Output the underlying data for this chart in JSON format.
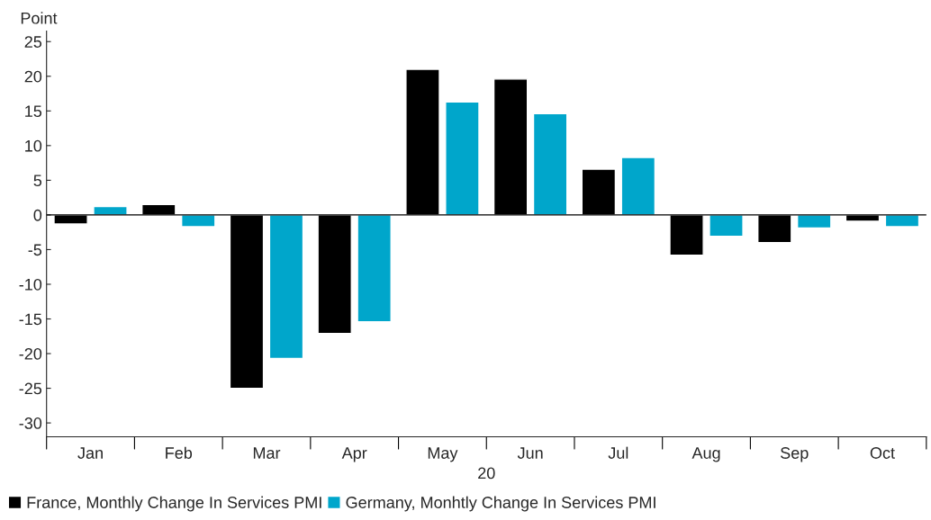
{
  "chart_data": {
    "type": "bar",
    "ylabel": "Point",
    "xlabel": "20",
    "categories": [
      "Jan",
      "Feb",
      "Mar",
      "Apr",
      "May",
      "Jun",
      "Jul",
      "Aug",
      "Sep",
      "Oct"
    ],
    "series": [
      {
        "name": "France, Monthly Change In Services PMI",
        "color": "#000000",
        "values": [
          -1.3,
          1.5,
          -25,
          -17.1,
          21,
          19.6,
          6.6,
          -5.8,
          -4.0,
          -0.9
        ]
      },
      {
        "name": "Germany, Monhtly Change In Services PMI",
        "color": "#00a6cb",
        "values": [
          1.2,
          -1.7,
          -20.7,
          -15.4,
          16.3,
          14.6,
          8.3,
          -3.1,
          -1.9,
          -1.7
        ]
      }
    ],
    "ylim": [
      -32,
      26.5
    ],
    "yticks": [
      -30,
      -25,
      -20,
      -15,
      -10,
      -5,
      0,
      5,
      10,
      15,
      20,
      25
    ],
    "grid": false,
    "ref_lines": [
      {
        "axis": "y",
        "value": 0,
        "color": "#000000"
      }
    ],
    "legend": "bottom"
  }
}
